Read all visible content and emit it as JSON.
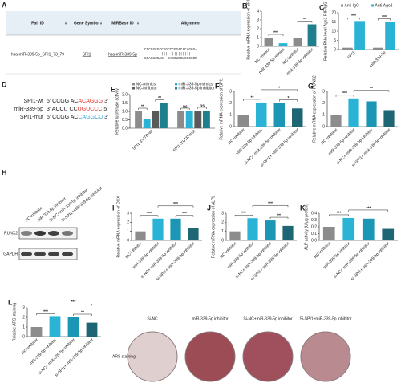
{
  "table": {
    "label": "A",
    "headers": [
      "Pair ID",
      "Gene Symbol",
      "MiRBase ID",
      "Alignment"
    ],
    "rows": [
      [
        "hsa-miR-339-5p_SPI1_73_79",
        "SPI1",
        "hsa-miR-339-5p",
        [
          "CCCCGCGCCGGCCCGGACACAGGGA",
          "        |||  |||||||||",
          "GCACUCGAG--CACCUCCUCGCCCU"
        ]
      ]
    ]
  },
  "sequences": {
    "label": "D",
    "lines": [
      {
        "name": "SPI1-wt",
        "start": "5′",
        "seq": "CCGG AC",
        "site": "ACAGGG",
        "end": "3′",
        "site_color": "#e8332a"
      },
      {
        "name": "miR-339-5p",
        "start": "3′",
        "seq": "ACCU CC",
        "site": "UGUCCC",
        "end": "5′",
        "site_color": "#e8332a"
      },
      {
        "name": "SPI1-mut",
        "start": "5′",
        "seq": "CCGG AC",
        "site": "CAGGCU",
        "end": "3′",
        "site_color": "#2aa6d6"
      }
    ]
  },
  "blot": {
    "label": "H",
    "lanes": [
      "NC-inhibitor",
      "miR-339-5p inhibitor",
      "Si-NC+miR-339-5p inhibitor",
      "Si-SPI1+miR-339-5p inhibitor"
    ],
    "bands": [
      "RUNX2",
      "GAPDH"
    ]
  },
  "staining": {
    "captions": [
      "Si-NC",
      "miR-339-5p inhibitor",
      "Si-NC+miR-339-5p inhibitor",
      "Si-SPI1+miR-339-5p inhibitor"
    ],
    "row_label": "ARS staining"
  },
  "chart_data": [
    {
      "type": "bar",
      "label": "B",
      "ylabel": "Relative mRNA expression of SPI1",
      "categories": [
        "NC-mimics",
        "miR-339-5p mimics",
        "NC-inhibitor",
        "miR-339-5p inhibitor"
      ],
      "values": [
        1.0,
        0.35,
        1.0,
        2.5
      ],
      "colors": [
        "#8c8c8c",
        "#2bb3d6",
        "#8c8c8c",
        "#1f7f8c"
      ],
      "ylim": [
        0,
        4
      ],
      "yticks": [
        0,
        1,
        2,
        3,
        4
      ],
      "annotations": [
        {
          "text": "***",
          "between": [
            0,
            1
          ]
        },
        {
          "text": "**",
          "between": [
            2,
            3
          ]
        }
      ]
    },
    {
      "type": "grouped-bar",
      "label": "C",
      "ylabel": "Relative RNA level Ago2-RIP/IgG",
      "categories": [
        "SPI1",
        "miR-339-5p"
      ],
      "series": [
        {
          "name": "Anti-IgG",
          "color": "#8c8c8c",
          "values": [
            1,
            1
          ]
        },
        {
          "name": "Anti-Ago2",
          "color": "#2bb3d6",
          "values": [
            15.5,
            15
          ]
        }
      ],
      "ylim": [
        0,
        20
      ],
      "yticks": [
        0,
        5,
        10,
        15,
        20
      ],
      "annotations": [
        {
          "text": "***",
          "group": 0,
          "between": [
            0,
            1
          ]
        },
        {
          "text": "***",
          "group": 1,
          "between": [
            0,
            1
          ]
        }
      ]
    },
    {
      "type": "grouped-bar",
      "label": "E",
      "ylabel": "Relative luciferase activity",
      "categories": [
        "SPI1-3'UTR-wt",
        "SPI1-3'UTR-mut"
      ],
      "series": [
        {
          "name": "NC-mimics",
          "color": "#8c8c8c",
          "values": [
            1.0,
            1.0
          ]
        },
        {
          "name": "miR-339-5p mimics",
          "color": "#2bb3d6",
          "values": [
            0.55,
            1.0
          ]
        },
        {
          "name": "NC-inhibitor",
          "color": "#5a5a5a",
          "values": [
            1.0,
            1.0
          ]
        },
        {
          "name": "miR-339-5p inhibitor",
          "color": "#1f7f8c",
          "values": [
            1.5,
            1.05
          ]
        }
      ],
      "ylim": [
        0,
        2
      ],
      "yticks": [
        {
          "value": 0,
          "label": "0.0"
        },
        {
          "value": 0.5,
          "label": "0.5"
        },
        {
          "value": 1,
          "label": "1.0"
        },
        {
          "value": 1.5,
          "label": "1.5"
        },
        {
          "value": 2,
          "label": "2.0"
        }
      ],
      "annotations": [
        {
          "text": "**",
          "group": 0,
          "between": [
            0,
            1
          ]
        },
        {
          "text": "**",
          "group": 0,
          "between": [
            2,
            3
          ]
        },
        {
          "text": "ns",
          "group": 1,
          "between": [
            0,
            1
          ]
        },
        {
          "text": "ns",
          "group": 1,
          "between": [
            2,
            3
          ]
        }
      ]
    },
    {
      "type": "bar",
      "label": "F",
      "ylabel": "Relative mRNA expression of SPI1",
      "categories": [
        "NC-inhibitor",
        "miR-339-5p inhibitor",
        "si-NC+ miR-339-5p inhibitor",
        "si-SPI1+ miR-339-5p inhibitor"
      ],
      "values": [
        1.0,
        2.05,
        2.0,
        1.55
      ],
      "colors": [
        "#8c8c8c",
        "#2bb3d6",
        "#1b96b4",
        "#1f6675"
      ],
      "ylim": [
        0,
        3
      ],
      "yticks": [
        0,
        1,
        2,
        3
      ],
      "annotations": [
        {
          "text": "**",
          "between": [
            0,
            1
          ]
        },
        {
          "text": "*",
          "between": [
            2,
            3
          ]
        },
        {
          "text": "*",
          "between": [
            1,
            3
          ]
        }
      ]
    },
    {
      "type": "bar",
      "label": "G",
      "ylabel": "Relative mRNA expression of RUNX2",
      "categories": [
        "NC-inhibitor",
        "miR-339-5p inhibitor",
        "si-NC+ miR-339-5p inhibitor",
        "si-SPI1+ miR-339-5p inhibitor"
      ],
      "values": [
        1.0,
        2.4,
        2.15,
        1.4
      ],
      "colors": [
        "#8c8c8c",
        "#2bb3d6",
        "#1b96b4",
        "#1f6675"
      ],
      "ylim": [
        0,
        3
      ],
      "yticks": [
        0,
        1,
        2,
        3
      ],
      "annotations": [
        {
          "text": "***",
          "between": [
            0,
            1
          ]
        },
        {
          "text": "**",
          "between": [
            1,
            3
          ]
        }
      ]
    },
    {
      "type": "bar",
      "label": "I",
      "ylabel": "Relative mRNA expression of OSX",
      "categories": [
        "NC-inhibitor",
        "miR-339-5p inhibitor",
        "si-NC+ miR-339-5p inhibitor",
        "si-SPI1+ miR-339-5p inhibitor"
      ],
      "values": [
        1.0,
        2.4,
        2.4,
        1.35
      ],
      "colors": [
        "#8c8c8c",
        "#2bb3d6",
        "#1b96b4",
        "#1f6675"
      ],
      "ylim": [
        0,
        3
      ],
      "yticks": [
        0,
        1,
        2,
        3
      ],
      "annotations": [
        {
          "text": "***",
          "between": [
            0,
            1
          ]
        },
        {
          "text": "***",
          "between": [
            2,
            3
          ]
        },
        {
          "text": "***",
          "between": [
            1,
            3
          ]
        }
      ]
    },
    {
      "type": "bar",
      "label": "J",
      "ylabel": "Relative mRNA expression of ALPL",
      "categories": [
        "NC-inhibitor",
        "miR-339-5p inhibitor",
        "si-NC+ miR-339-5p inhibitor",
        "si-SPI1+ miR-339-5p inhibitor"
      ],
      "values": [
        1.0,
        2.45,
        2.2,
        1.6
      ],
      "colors": [
        "#8c8c8c",
        "#2bb3d6",
        "#1b96b4",
        "#1f6675"
      ],
      "ylim": [
        0,
        3
      ],
      "yticks": [
        0,
        1,
        2,
        3
      ],
      "annotations": [
        {
          "text": "***",
          "between": [
            0,
            1
          ]
        },
        {
          "text": "**",
          "between": [
            2,
            3
          ]
        },
        {
          "text": "***",
          "between": [
            1,
            3
          ]
        }
      ]
    },
    {
      "type": "bar",
      "label": "K",
      "ylabel": "ALP activity (U/μg protein)",
      "categories": [
        "NC-inhibitor",
        "miR-339-5p inhibitor",
        "si-NC+ miR-339-5p inhibitor",
        "si-SPI1+ miR-339-5p inhibitor"
      ],
      "values": [
        0.2,
        0.33,
        0.32,
        0.17
      ],
      "colors": [
        "#8c8c8c",
        "#2bb3d6",
        "#1b96b4",
        "#1f6675"
      ],
      "ylim": [
        0,
        0.4
      ],
      "yticks": [
        {
          "value": 0,
          "label": "0.0"
        },
        0.1,
        0.2,
        0.3,
        0.4
      ],
      "annotations": [
        {
          "text": "***",
          "between": [
            0,
            1
          ]
        },
        {
          "text": "***",
          "between": [
            1,
            3
          ]
        }
      ]
    },
    {
      "type": "bar",
      "label": "L",
      "ylabel": "Relative ARS staining",
      "categories": [
        "NC-inhibitor",
        "miR-339-5p inhibitor",
        "si-NC+ miR-339-5p inhibitor",
        "si-SPI1+ miR-339-5p inhibitor"
      ],
      "values": [
        1.0,
        2.05,
        2.0,
        1.45
      ],
      "colors": [
        "#8c8c8c",
        "#2bb3d6",
        "#1b96b4",
        "#1f6675"
      ],
      "ylim": [
        0,
        3
      ],
      "yticks": [
        0,
        1,
        2,
        3
      ],
      "annotations": [
        {
          "text": "***",
          "between": [
            0,
            1
          ]
        },
        {
          "text": "**",
          "between": [
            2,
            3
          ]
        },
        {
          "text": "***",
          "between": [
            1,
            3
          ]
        }
      ]
    }
  ]
}
